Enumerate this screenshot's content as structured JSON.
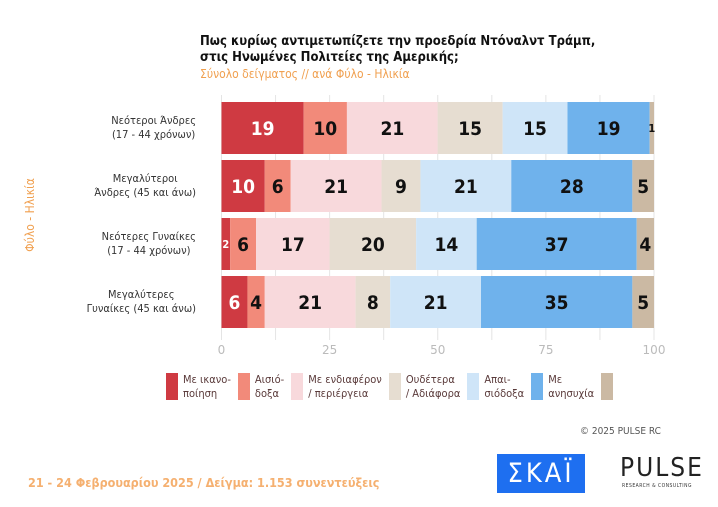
{
  "title_line1": "Πως κυρίως αντιμετωπίζετε την προεδρία Ντόναλντ Τράμπ,",
  "title_line2": "στις Ηνωμένες Πολιτείες της Αμερικής;",
  "subtitle": "Σύνολο δείγματος // ανά Φύλο - Ηλικία",
  "y_axis_label": "Φύλο - Ηλικία",
  "copyright": "©  2025  PULSE RC",
  "footer": "21 - 24 Φεβρουαρίου 2025  /  Δείγμα:  1.153 συνεντεύξεις",
  "logos": {
    "skai": "ΣΚΑΪ",
    "pulse": "PULSE",
    "pulse_sub": "RESEARCH & CONSULTING"
  },
  "chart_data": {
    "type": "bar",
    "orientation": "horizontal",
    "stacked": true,
    "title": "Πως κυρίως αντιμετωπίζετε την προεδρία Ντόναλντ Τράμπ, στις Ηνωμένες Πολιτείες της Αμερικής;",
    "ylabel": "Φύλο - Ηλικία",
    "xlim": [
      0,
      100
    ],
    "xticks": [
      0,
      25,
      50,
      75,
      100
    ],
    "grid": true,
    "legend": "bottom",
    "categories": [
      {
        "line1": "Νεότεροι Άνδρες",
        "line2": "(17 - 44 χρόνων)"
      },
      {
        "line1": "Μεγαλύτεροι",
        "line2": "Άνδρες (45 και άνω)"
      },
      {
        "line1": "Νεότερες Γυναίκες",
        "line2": "(17 - 44 χρόνων)"
      },
      {
        "line1": "Μεγαλύτερες",
        "line2": "Γυναίκες (45 και άνω)"
      }
    ],
    "series": [
      {
        "name": "Με ικανο-\nποίηση",
        "color": "#cf3a42",
        "label_color": "#ffffff",
        "values": [
          19,
          10,
          2,
          6
        ]
      },
      {
        "name": "Αισιό-\nδοξα",
        "color": "#f28a7a",
        "label_color": "#111111",
        "values": [
          10,
          6,
          6,
          4
        ]
      },
      {
        "name": "Με ενδιαφέρον\n/ περιέργεια",
        "color": "#f8d9dc",
        "label_color": "#111111",
        "values": [
          21,
          21,
          17,
          21
        ]
      },
      {
        "name": "Ουδέτερα\n/ Αδιάφορα",
        "color": "#e6ddd1",
        "label_color": "#111111",
        "values": [
          15,
          9,
          20,
          8
        ]
      },
      {
        "name": "Απαι-\nσιόδοξα",
        "color": "#cfe5f8",
        "label_color": "#111111",
        "values": [
          15,
          21,
          14,
          21
        ]
      },
      {
        "name": "Με\nανησυχία",
        "color": "#6fb2ec",
        "label_color": "#111111",
        "values": [
          19,
          28,
          37,
          35
        ]
      },
      {
        "name": "",
        "color": "#cbb9a3",
        "label_color": "#111111",
        "values": [
          1,
          5,
          4,
          5
        ]
      }
    ]
  }
}
